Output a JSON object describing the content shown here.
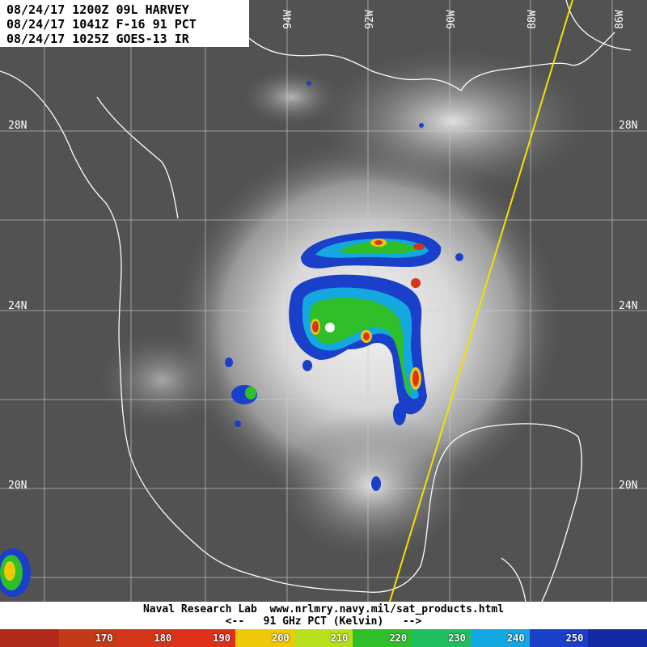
{
  "header": {
    "line1": "08/24/17 1200Z 09L HARVEY",
    "line2": "08/24/17 1041Z F-16 91 PCT",
    "line3": "08/24/17 1025Z GOES-13 IR"
  },
  "grid": {
    "lat_labels": [
      "28N",
      "24N",
      "20N"
    ],
    "lon_labels": [
      "94W",
      "92W",
      "90W",
      "88W",
      "86W"
    ]
  },
  "footer": {
    "line1": "Naval Research Lab  www.nrlmry.navy.mil/sat_products.html",
    "line2": "<--   91 GHz PCT (Kelvin)   -->"
  },
  "colorbar": {
    "segments": [
      {
        "label": "",
        "color": "#b22a1b"
      },
      {
        "label": "170",
        "color": "#c43a18"
      },
      {
        "label": "180",
        "color": "#d4361a"
      },
      {
        "label": "190",
        "color": "#e0301a"
      },
      {
        "label": "200",
        "color": "#f0c80a"
      },
      {
        "label": "210",
        "color": "#b8e01a"
      },
      {
        "label": "220",
        "color": "#2fbf2a"
      },
      {
        "label": "230",
        "color": "#1fbf60"
      },
      {
        "label": "240",
        "color": "#14a8e0"
      },
      {
        "label": "250",
        "color": "#1a3fc8"
      },
      {
        "label": "",
        "color": "#142aa0"
      }
    ]
  }
}
